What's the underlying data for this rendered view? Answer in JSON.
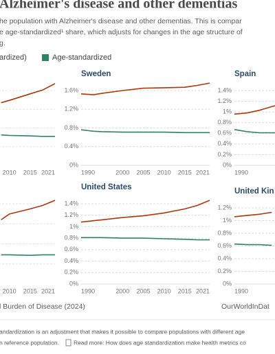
{
  "title": "Alzheimer's disease and other dementias",
  "subtitle": [
    "he population with Alzheimer's disease and other dementias. This is compar",
    "e age-standardized¹ share, which adjusts for changes in the age structure of",
    "g."
  ],
  "legend": [
    {
      "name": "ardized)",
      "color": "#b13507"
    },
    {
      "name": "Age-standardized",
      "color": "#2c8465"
    }
  ],
  "chart_data": [
    {
      "type": "line",
      "x": [
        2008,
        2010,
        2015,
        2018,
        2021
      ],
      "xlim": [
        1990,
        2021
      ],
      "xticks": [
        2010,
        2015,
        2021
      ],
      "ylim": [
        0,
        1.6
      ],
      "series": [
        {
          "values": [
            1.34,
            1.39,
            1.53,
            1.61,
            1.75
          ]
        },
        {
          "values": [
            0.65,
            0.64,
            0.63,
            0.62,
            0.62
          ]
        }
      ]
    },
    {
      "type": "line",
      "title": "Sweden",
      "x": [
        1990,
        1993,
        1995,
        2000,
        2005,
        2010,
        2015,
        2018,
        2021
      ],
      "xlim": [
        1990,
        2021
      ],
      "xticks": [
        1990,
        2000,
        2005,
        2010,
        2015,
        2021
      ],
      "ylim": [
        0,
        1.6
      ],
      "yticks": [
        {
          "value": 0,
          "label": "0%"
        },
        {
          "value": 0.4,
          "label": "0.4%"
        },
        {
          "value": 0.8,
          "label": "0.8%"
        },
        {
          "value": 1.2,
          "label": "1.2%"
        },
        {
          "value": 1.6,
          "label": "1.6%"
        }
      ],
      "series": [
        {
          "values": [
            1.53,
            1.51,
            1.54,
            1.6,
            1.65,
            1.66,
            1.67,
            1.71,
            1.76
          ]
        },
        {
          "values": [
            0.76,
            0.73,
            0.72,
            0.71,
            0.71,
            0.71,
            0.7,
            0.7,
            0.7
          ]
        }
      ]
    },
    {
      "type": "line",
      "title": "Spain",
      "x": [
        1990,
        1993,
        1996,
        1999,
        2000
      ],
      "xlim": [
        1990,
        2021
      ],
      "xticks": [
        1990
      ],
      "ylim": [
        0,
        1.4
      ],
      "yticks": [
        {
          "value": 0,
          "label": "0%"
        },
        {
          "value": 0.2,
          "label": "0.2%"
        },
        {
          "value": 0.4,
          "label": "0.4%"
        },
        {
          "value": 0.6,
          "label": "0.6%"
        },
        {
          "value": 0.8,
          "label": "0.8%"
        },
        {
          "value": 1,
          "label": "1%"
        },
        {
          "value": 1.2,
          "label": "1.2%"
        },
        {
          "value": 1.4,
          "label": "1.4%"
        }
      ],
      "series": [
        {
          "values": [
            0.96,
            0.98,
            1.03,
            1.1,
            1.12
          ]
        },
        {
          "values": [
            0.67,
            0.63,
            0.61,
            0.61,
            0.61
          ]
        }
      ]
    },
    {
      "type": "line",
      "x": [
        2008,
        2010,
        2015,
        2018,
        2021
      ],
      "xlim": [
        1990,
        2021
      ],
      "xticks": [
        2010,
        2015,
        2021
      ],
      "ylim": [
        0,
        1.4
      ],
      "series": [
        {
          "values": [
            1.12,
            1.22,
            1.31,
            1.37,
            1.46
          ]
        },
        {
          "values": [
            0.51,
            0.51,
            0.5,
            0.51,
            0.51
          ]
        }
      ]
    },
    {
      "type": "line",
      "title": "United States",
      "x": [
        1990,
        1995,
        2000,
        2005,
        2010,
        2015,
        2018,
        2021
      ],
      "xlim": [
        1990,
        2021
      ],
      "xticks": [
        1990,
        2000,
        2005,
        2010,
        2015,
        2021
      ],
      "ylim": [
        0,
        1.4
      ],
      "yticks": [
        {
          "value": 0,
          "label": "0%"
        },
        {
          "value": 0.2,
          "label": "0.2%"
        },
        {
          "value": 0.4,
          "label": "0.4%"
        },
        {
          "value": 0.6,
          "label": "0.6%"
        },
        {
          "value": 0.8,
          "label": "0.8%"
        },
        {
          "value": 1,
          "label": "1%"
        },
        {
          "value": 1.2,
          "label": "1.2%"
        },
        {
          "value": 1.4,
          "label": "1.4%"
        }
      ],
      "series": [
        {
          "values": [
            1.08,
            1.12,
            1.16,
            1.19,
            1.24,
            1.31,
            1.37,
            1.46
          ]
        },
        {
          "values": [
            0.81,
            0.81,
            0.8,
            0.8,
            0.79,
            0.78,
            0.77,
            0.77
          ]
        }
      ]
    },
    {
      "type": "line",
      "title": "United Kin",
      "x": [
        1990,
        1993,
        1996,
        1999
      ],
      "xlim": [
        1990,
        2021
      ],
      "xticks": [
        1990
      ],
      "ylim": [
        0,
        1.2
      ],
      "yticks": [
        {
          "value": 0,
          "label": "0%"
        },
        {
          "value": 0.2,
          "label": "0.2%"
        },
        {
          "value": 0.4,
          "label": "0.4%"
        },
        {
          "value": 0.6,
          "label": "0.6%"
        },
        {
          "value": 0.8,
          "label": "0.8%"
        },
        {
          "value": 1,
          "label": "1%"
        },
        {
          "value": 1.2,
          "label": "1.2%"
        }
      ],
      "series": [
        {
          "values": [
            1.06,
            1.08,
            1.1,
            1.13
          ]
        },
        {
          "values": [
            0.63,
            0.62,
            0.62,
            0.61
          ]
        }
      ]
    }
  ],
  "source": "l Burden of Disease (2024)",
  "brand": "OurWorldInDat",
  "footnote": [
    "andardization is an adjustment that makes it possible to compare populations with different age",
    "n reference population.",
    "Read more: How does age standardization make health metrics co"
  ]
}
